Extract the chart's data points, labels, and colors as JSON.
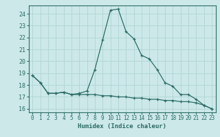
{
  "xlabel": "Humidex (Indice chaleur)",
  "bg_color": "#cce8e8",
  "grid_color": "#b0d4d4",
  "line_color": "#2a6b65",
  "xlim": [
    -0.5,
    23.5
  ],
  "ylim": [
    15.7,
    24.7
  ],
  "yticks": [
    16,
    17,
    18,
    19,
    20,
    21,
    22,
    23,
    24
  ],
  "xticks": [
    0,
    1,
    2,
    3,
    4,
    5,
    6,
    7,
    8,
    9,
    10,
    11,
    12,
    13,
    14,
    15,
    16,
    17,
    18,
    19,
    20,
    21,
    22,
    23
  ],
  "series1_x": [
    0,
    1,
    2,
    3,
    4,
    5,
    6,
    7,
    8,
    9,
    10,
    11,
    12,
    13,
    14,
    15,
    16,
    17,
    18,
    19,
    20,
    21,
    22,
    23
  ],
  "series1_y": [
    18.8,
    18.2,
    17.3,
    17.3,
    17.4,
    17.2,
    17.3,
    17.5,
    19.3,
    21.8,
    24.3,
    24.4,
    22.5,
    21.9,
    20.5,
    20.2,
    19.3,
    18.2,
    17.9,
    17.2,
    17.2,
    16.8,
    16.3,
    16.0
  ],
  "series2_x": [
    0,
    1,
    2,
    3,
    4,
    5,
    6,
    7,
    8,
    9,
    10,
    11,
    12,
    13,
    14,
    15,
    16,
    17,
    18,
    19,
    20,
    21,
    22,
    23
  ],
  "series2_y": [
    18.8,
    18.2,
    17.3,
    17.3,
    17.4,
    17.2,
    17.2,
    17.2,
    17.2,
    17.1,
    17.1,
    17.0,
    17.0,
    16.9,
    16.9,
    16.8,
    16.8,
    16.7,
    16.7,
    16.6,
    16.6,
    16.5,
    16.3,
    16.0
  ]
}
